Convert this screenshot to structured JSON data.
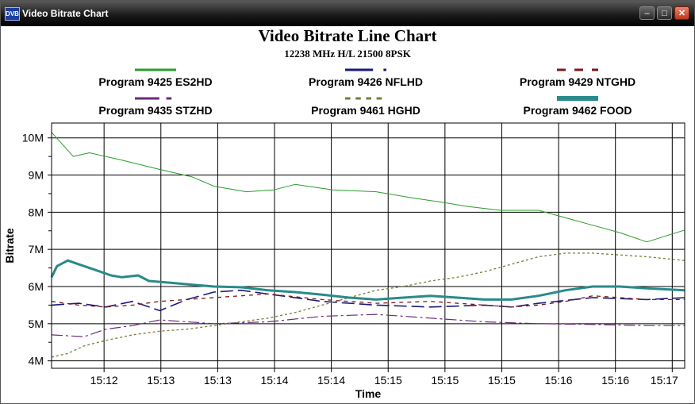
{
  "window": {
    "title": "Video Bitrate Chart",
    "app_icon": "DVB",
    "minimize_icon": "minimize-icon",
    "maximize_icon": "maximize-icon",
    "close_icon": "close-icon"
  },
  "chart_data": {
    "type": "line",
    "title": "Video Bitrate Line Chart",
    "subtitle": "12238 MHz H/L 21500 8PSK",
    "xlabel": "Time",
    "ylabel": "Bitrate",
    "x_ticks": [
      "15:12",
      "15:13",
      "15:13",
      "15:14",
      "15:14",
      "15:15",
      "15:15",
      "15:15",
      "15:16",
      "15:16",
      "15:17"
    ],
    "x_range_minutes": [
      0,
      11.7
    ],
    "ylim": [
      3800000,
      10400000
    ],
    "y_ticks": [
      {
        "value": 4000000,
        "label": "4M"
      },
      {
        "value": 5000000,
        "label": "5M"
      },
      {
        "value": 6000000,
        "label": "6M"
      },
      {
        "value": 7000000,
        "label": "7M"
      },
      {
        "value": 8000000,
        "label": "8M"
      },
      {
        "value": 9000000,
        "label": "9M"
      },
      {
        "value": 10000000,
        "label": "10M"
      }
    ],
    "grid": true,
    "legend_position": "top",
    "series": [
      {
        "name": "Program 9425 ES2HD",
        "color": "#2a9d2a",
        "dash": "solid",
        "width": 1,
        "x": [
          0,
          0.4,
          0.7,
          1.3,
          2.0,
          2.6,
          3.0,
          3.6,
          4.1,
          4.5,
          5.2,
          6.0,
          6.6,
          7.3,
          7.7,
          8.3,
          9.0,
          9.5,
          10.0,
          10.5,
          11.0,
          11.7
        ],
        "y": [
          10150000,
          9500000,
          9600000,
          9400000,
          9150000,
          8950000,
          8700000,
          8550000,
          8600000,
          8750000,
          8600000,
          8550000,
          8400000,
          8250000,
          8150000,
          8050000,
          8050000,
          7850000,
          7650000,
          7450000,
          7200000,
          7520000
        ]
      },
      {
        "name": "Program 9426 NFLHD",
        "color": "#1a1a7a",
        "dash": "16,6",
        "width": 1.6,
        "x": [
          0,
          0.5,
          1.0,
          1.5,
          2.0,
          2.5,
          3.0,
          3.5,
          4.0,
          5.0,
          6.0,
          7.0,
          8.0,
          8.5,
          9.0,
          10.0,
          11.0,
          11.7
        ],
        "y": [
          5500000,
          5550000,
          5450000,
          5600000,
          5350000,
          5650000,
          5850000,
          5900000,
          5800000,
          5600000,
          5500000,
          5450000,
          5500000,
          5450000,
          5550000,
          5700000,
          5650000,
          5700000
        ]
      },
      {
        "name": "Program 9429 NTGHD",
        "color": "#7a1a1a",
        "dash": "5,5",
        "width": 1.3,
        "x": [
          0,
          0.5,
          1.0,
          1.5,
          2.0,
          3.0,
          4.0,
          5.0,
          6.0,
          7.0,
          8.0,
          8.5,
          9.0,
          9.5,
          10.0,
          10.5,
          11.0,
          11.7
        ],
        "y": [
          5600000,
          5500000,
          5450000,
          5500000,
          5600000,
          5700000,
          5800000,
          5650000,
          5550000,
          5600000,
          5500000,
          5450000,
          5500000,
          5600000,
          5750000,
          5700000,
          5650000,
          5650000
        ]
      },
      {
        "name": "Program 9435 STZHD",
        "color": "#6a2a7a",
        "dash": "14,4,3,4",
        "width": 1.2,
        "x": [
          0,
          0.6,
          1.0,
          1.5,
          2.0,
          3.0,
          4.0,
          5.0,
          6.0,
          7.0,
          8.0,
          9.0,
          10.0,
          11.0,
          11.7
        ],
        "y": [
          4700000,
          4650000,
          4850000,
          4950000,
          5100000,
          5000000,
          5050000,
          5200000,
          5250000,
          5150000,
          5050000,
          5000000,
          4980000,
          4950000,
          4950000
        ]
      },
      {
        "name": "Program 9461 HGHD",
        "color": "#7a7a3a",
        "dash": "3,3",
        "width": 1.3,
        "x": [
          0,
          0.3,
          0.6,
          1.0,
          1.5,
          2.0,
          2.5,
          3.0,
          3.5,
          4.0,
          4.5,
          5.0,
          5.5,
          6.0,
          6.5,
          7.0,
          7.5,
          8.0,
          8.5,
          9.0,
          9.5,
          10.0,
          10.5,
          11.0,
          11.7
        ],
        "y": [
          4100000,
          4200000,
          4400000,
          4550000,
          4700000,
          4800000,
          4850000,
          4950000,
          5050000,
          5150000,
          5300000,
          5500000,
          5700000,
          5900000,
          6000000,
          6150000,
          6250000,
          6400000,
          6600000,
          6800000,
          6900000,
          6900000,
          6850000,
          6800000,
          6700000
        ]
      },
      {
        "name": "Program 9462 FOOD",
        "color": "#2a8a8a",
        "dash": "solid",
        "width": 3,
        "x": [
          0,
          0.1,
          0.3,
          0.5,
          0.8,
          1.1,
          1.3,
          1.6,
          1.8,
          2.2,
          2.6,
          3.0,
          3.5,
          4.0,
          4.5,
          5.0,
          5.5,
          6.0,
          6.5,
          7.0,
          7.5,
          8.0,
          8.5,
          9.0,
          9.5,
          10.0,
          10.5,
          11.0,
          11.7
        ],
        "y": [
          6250000,
          6550000,
          6700000,
          6600000,
          6450000,
          6300000,
          6250000,
          6300000,
          6150000,
          6100000,
          6050000,
          6000000,
          5980000,
          5900000,
          5850000,
          5780000,
          5700000,
          5650000,
          5700000,
          5750000,
          5700000,
          5650000,
          5650000,
          5750000,
          5900000,
          6000000,
          6000000,
          5950000,
          5900000
        ]
      }
    ]
  }
}
